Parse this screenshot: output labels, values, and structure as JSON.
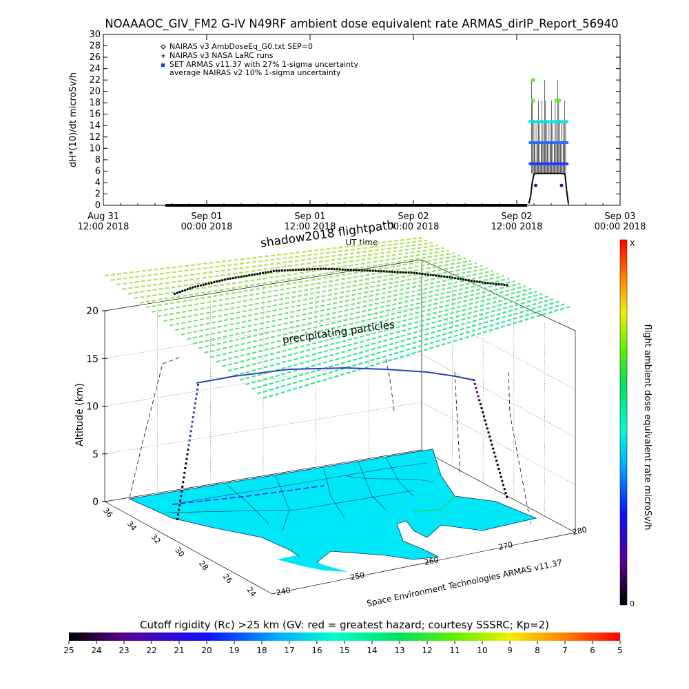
{
  "figure": {
    "title": "NOAAAOC_GIV_FM2 G-IV   N49RF  ambient dose equivalent rate ARMAS_dirIP_Report_56940",
    "credit": "Space Environment Technologies ARMAS v11.37"
  },
  "colors": {
    "nairas_v3_file": "#000000",
    "nairas_v3_larc": "#000000",
    "armas": "#1a3cff",
    "nairas_v2_band": "#00e6e6",
    "peak": "#66ee33",
    "track": "#000000",
    "shadow_grid_light": "#b8e05a",
    "shadow_grid_dark": "#22e690",
    "land": "#00e8f8"
  },
  "chart_data": [
    {
      "type": "scatter",
      "ylabel": "dH*(10)/dt microSv/h",
      "xlabel": "UT time",
      "ylim": [
        0,
        30
      ],
      "yticks": [
        "0",
        "2",
        "4",
        "6",
        "8",
        "10",
        "12",
        "14",
        "16",
        "18",
        "20",
        "22",
        "24",
        "26",
        "28",
        "30"
      ],
      "xticks": [
        {
          "line1": "Aug 31",
          "line2": "12:00 2018"
        },
        {
          "line1": "Sep 01",
          "line2": "00:00 2018"
        },
        {
          "line1": "Sep 01",
          "line2": "12:00 2018"
        },
        {
          "line1": "Sep 02",
          "line2": "00:00 2018"
        },
        {
          "line1": "Sep 02",
          "line2": "12:00 2018"
        },
        {
          "line1": "Sep 03",
          "line2": "00:00 2018"
        }
      ],
      "xrange_hours": [
        0,
        60
      ],
      "legend": [
        {
          "symbol": "diamond",
          "label": "NAIRAS v3 AmbDoseEq_G0.txt SEP=0"
        },
        {
          "symbol": "plus",
          "label": "NAIRAS v3 NASA LaRC runs"
        },
        {
          "symbol": "square",
          "label": "SET ARMAS v11.37 with 27% 1-sigma uncertainty"
        },
        {
          "symbol": "none",
          "label": "average NAIRAS v2 10% 1-sigma uncertainty"
        }
      ],
      "legend_position": "top-left",
      "series": [
        {
          "label": "baseline",
          "x_start": 7.2,
          "x_end": 49.2,
          "y": 0
        },
        {
          "label": "flight",
          "x_start": 49.4,
          "x_end": 54.0,
          "profile_x": [
            49.4,
            49.6,
            49.8,
            50.0,
            50.4,
            51.0,
            52.0,
            53.0,
            53.6,
            53.8,
            54.0
          ],
          "profile_y": [
            0.3,
            1.5,
            4.0,
            5.5,
            5.6,
            5.6,
            5.6,
            5.6,
            5.5,
            2.5,
            0.3
          ]
        },
        {
          "label": "armas_band_low",
          "y": 7.3
        },
        {
          "label": "armas_band_mid",
          "y": 11.0
        },
        {
          "label": "nairas_v2_band",
          "y": 14.7
        },
        {
          "label": "peaks_green",
          "points": [
            [
              49.9,
              22.0
            ],
            [
              49.9,
              18.4
            ],
            [
              52.6,
              18.4
            ],
            [
              52.9,
              18.4
            ]
          ]
        },
        {
          "label": "purple_low",
          "points": [
            [
              50.2,
              3.5
            ],
            [
              53.2,
              3.5
            ]
          ]
        }
      ]
    },
    {
      "type": "3d-flightpath",
      "title": "shadow2018  flightpath",
      "shadow_label": "precipitating particles",
      "zlabel": "Altitude (km)",
      "zticks": [
        "0",
        "5",
        "10",
        "15",
        "20"
      ],
      "lat_ticks": [
        "36",
        "34",
        "32",
        "30",
        "28",
        "26",
        "24"
      ],
      "lon_ticks": [
        "240",
        "250",
        "260",
        "270",
        "280"
      ],
      "colorbar": {
        "label": "flight ambient dose equivalent rate microSv/h",
        "top": "X",
        "bottom": "0"
      },
      "rigidity_bar": {
        "title": "Cutoff rigidity (Rc) >25 km (GV: red = greatest hazard; courtesy SSSRC; Kp=2)",
        "ticks": [
          "25",
          "24",
          "23",
          "22",
          "21",
          "20",
          "19",
          "18",
          "17",
          "16",
          "15",
          "14",
          "13",
          "12",
          "11",
          "10",
          "9",
          "8",
          "7",
          "6",
          "5"
        ]
      }
    }
  ]
}
